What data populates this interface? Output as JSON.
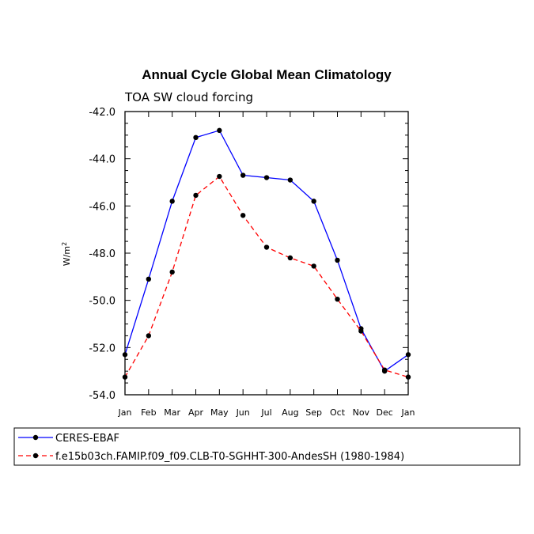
{
  "chart_data": {
    "type": "line",
    "title": "Annual Cycle Global Mean Climatology",
    "subtitle": "TOA SW cloud forcing",
    "ylabel": "W/m",
    "ylabel_sup": "2",
    "xlabel": "",
    "ylim": [
      -54.0,
      -42.0
    ],
    "yticks": [
      "-42.0",
      "-44.0",
      "-46.0",
      "-48.0",
      "-50.0",
      "-52.0",
      "-54.0"
    ],
    "ytick_values": [
      -42,
      -44,
      -46,
      -48,
      -50,
      -52,
      -54
    ],
    "categories": [
      "Jan",
      "Feb",
      "Mar",
      "Apr",
      "May",
      "Jun",
      "Jul",
      "Aug",
      "Sep",
      "Oct",
      "Nov",
      "Dec",
      "Jan"
    ],
    "series": [
      {
        "name": "CERES-EBAF",
        "color": "#0000ff",
        "dash": "solid",
        "values": [
          -52.3,
          -49.1,
          -45.8,
          -43.1,
          -42.8,
          -44.7,
          -44.8,
          -44.9,
          -45.8,
          -48.3,
          -51.2,
          -53.0,
          -52.3
        ]
      },
      {
        "name": "f.e15b03ch.FAMIP.f09_f09.CLB-T0-SGHHT-300-AndesSH (1980-1984)",
        "color": "#ff0000",
        "dash": "dashed",
        "values": [
          -53.25,
          -51.5,
          -48.8,
          -45.55,
          -44.75,
          -46.4,
          -47.75,
          -48.2,
          -48.55,
          -49.95,
          -51.3,
          -52.95,
          -53.25
        ]
      }
    ]
  }
}
